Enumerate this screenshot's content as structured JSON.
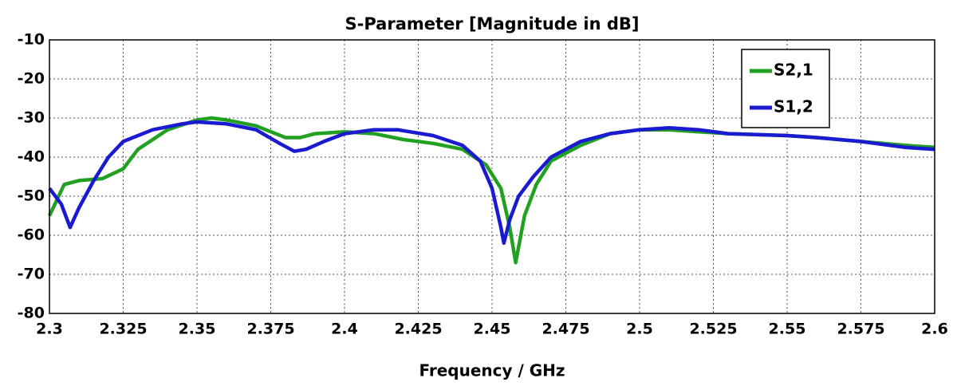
{
  "chart_data": {
    "type": "line",
    "title": "S-Parameter [Magnitude in dB]",
    "x_label": "Frequency / GHz",
    "xlim": [
      2.3,
      2.6
    ],
    "xticks": [
      2.3,
      2.325,
      2.35,
      2.375,
      2.4,
      2.425,
      2.45,
      2.475,
      2.5,
      2.525,
      2.55,
      2.575,
      2.6
    ],
    "ylim": [
      -80,
      -10
    ],
    "yticks": [
      -10,
      -20,
      -30,
      -40,
      -50,
      -60,
      -70,
      -80
    ],
    "grid": true,
    "legend": "upper right",
    "series": [
      {
        "name": "S2,1",
        "color": "#22a022",
        "x": [
          2.3,
          2.305,
          2.31,
          2.318,
          2.325,
          2.33,
          2.34,
          2.35,
          2.355,
          2.36,
          2.37,
          2.38,
          2.385,
          2.39,
          2.4,
          2.41,
          2.42,
          2.43,
          2.44,
          2.448,
          2.453,
          2.456,
          2.458,
          2.461,
          2.465,
          2.47,
          2.48,
          2.49,
          2.5,
          2.51,
          2.52,
          2.53,
          2.55,
          2.56,
          2.575,
          2.59,
          2.6
        ],
        "values": [
          -55,
          -47,
          -46,
          -45.5,
          -43,
          -38,
          -33,
          -30.5,
          -30,
          -30.5,
          -32,
          -35,
          -35,
          -34,
          -33.5,
          -34,
          -35.5,
          -36.5,
          -38,
          -42,
          -48,
          -58,
          -67,
          -55,
          -47,
          -41,
          -37,
          -34,
          -33,
          -33,
          -33.5,
          -34,
          -34.5,
          -35,
          -36,
          -37,
          -37.5
        ]
      },
      {
        "name": "S1,2",
        "color": "#1a1ad0",
        "x": [
          2.3,
          2.304,
          2.307,
          2.31,
          2.315,
          2.32,
          2.325,
          2.335,
          2.345,
          2.35,
          2.36,
          2.37,
          2.378,
          2.383,
          2.387,
          2.393,
          2.4,
          2.41,
          2.418,
          2.43,
          2.44,
          2.446,
          2.45,
          2.453,
          2.454,
          2.456,
          2.459,
          2.464,
          2.47,
          2.48,
          2.49,
          2.5,
          2.51,
          2.52,
          2.53,
          2.55,
          2.56,
          2.575,
          2.59,
          2.6
        ],
        "values": [
          -48,
          -52,
          -58,
          -53,
          -46,
          -40,
          -36,
          -33,
          -31.5,
          -31,
          -31.5,
          -33,
          -36.5,
          -38.5,
          -38,
          -36,
          -34,
          -33,
          -33,
          -34.5,
          -37,
          -41,
          -48,
          -58,
          -62,
          -56,
          -50,
          -45,
          -40,
          -36,
          -34,
          -33,
          -32.5,
          -33,
          -34,
          -34.5,
          -35,
          -36,
          -37.5,
          -38
        ]
      }
    ]
  }
}
